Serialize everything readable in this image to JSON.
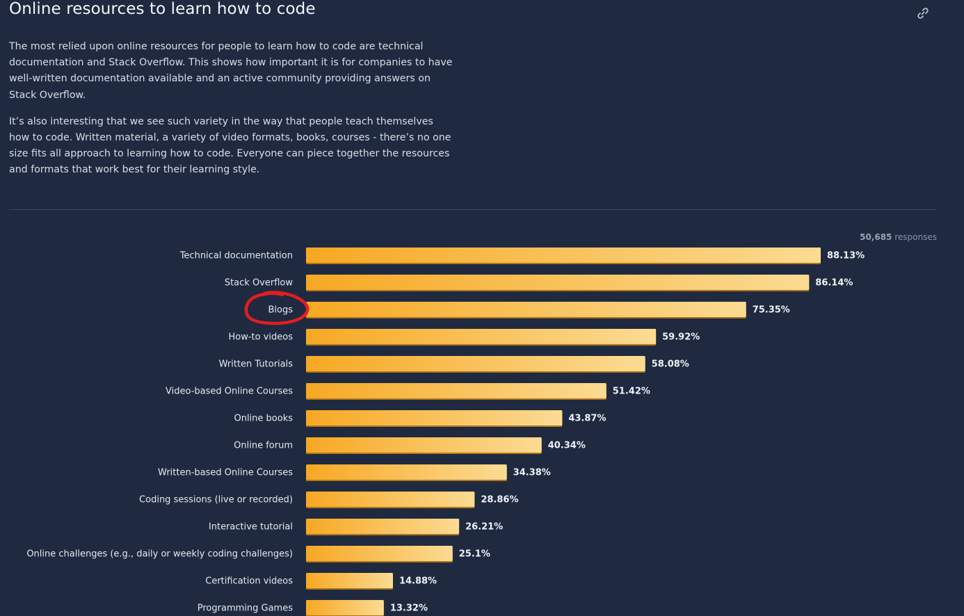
{
  "section": {
    "title": "Online resources to learn how to code",
    "link_icon": "link-icon"
  },
  "intro": {
    "paragraph1": "The most relied upon online resources for people to learn how to code are technical documentation and Stack Overflow. This shows how important it is for companies to have well-written documentation available and an active community providing answers on Stack Overflow.",
    "paragraph2": "It’s also interesting that we see such variety in the way that people teach themselves how to code. Written material, a variety of video formats, books, courses - there’s no one size fits all approach to learning how to code. Everyone can piece together the resources and formats that work best for their learning style."
  },
  "responses": {
    "count": "50,685",
    "label": "responses"
  },
  "colors": {
    "background": "#1f2a40",
    "bar_start": "#f7a823",
    "bar_end": "#fbdb93",
    "highlight": "#e01e22"
  },
  "highlighted_category": "Blogs",
  "chart_data": {
    "type": "bar",
    "orientation": "horizontal",
    "categories": [
      "Technical documentation",
      "Stack Overflow",
      "Blogs",
      "How-to videos",
      "Written Tutorials",
      "Video-based Online Courses",
      "Online books",
      "Online forum",
      "Written-based Online Courses",
      "Coding sessions (live or recorded)",
      "Interactive tutorial",
      "Online challenges (e.g., daily or weekly coding challenges)",
      "Certification videos",
      "Programming Games"
    ],
    "values": [
      88.13,
      86.14,
      75.35,
      59.92,
      58.08,
      51.42,
      43.87,
      40.34,
      34.38,
      28.86,
      26.21,
      25.1,
      14.88,
      13.32
    ],
    "value_labels": [
      "88.13%",
      "86.14%",
      "75.35%",
      "59.92%",
      "58.08%",
      "51.42%",
      "43.87%",
      "40.34%",
      "34.38%",
      "28.86%",
      "26.21%",
      "25.1%",
      "14.88%",
      "13.32%"
    ],
    "title": "",
    "xlabel": "",
    "ylabel": "",
    "xlim": [
      0,
      100
    ],
    "grid": false,
    "legend": "none"
  }
}
